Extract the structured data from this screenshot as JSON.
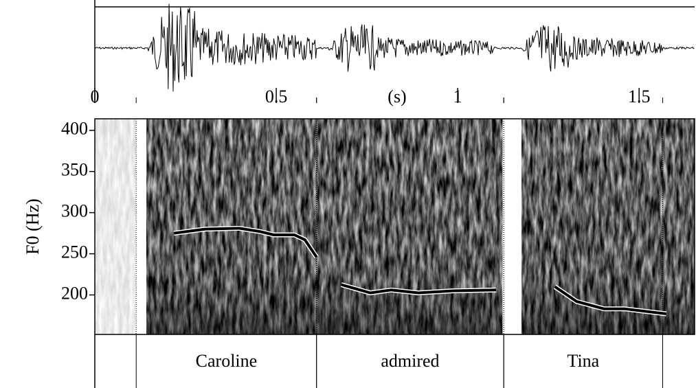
{
  "chart_data": {
    "type": "line",
    "xlabel": "(s)",
    "ylabel": "F0 (Hz)",
    "xlim": [
      0,
      1.653
    ],
    "xticks": [
      0,
      0.5,
      1,
      1.5
    ],
    "ylim": [
      152,
      414
    ],
    "yticks": [
      200,
      250,
      300,
      350,
      400
    ],
    "x": [
      0.218,
      0.304,
      0.398,
      0.455,
      0.493,
      0.55,
      0.579,
      0.611,
      0.645,
      0.679,
      0.759,
      0.816,
      0.892,
      0.987,
      1.106,
      1.187,
      1.268,
      1.328,
      1.404,
      1.461,
      1.575
    ],
    "series": [
      {
        "color": "#000000",
        "values": [
          275,
          280,
          281,
          277,
          273,
          273,
          267,
          246,
          null,
          212.5,
          202.5,
          206,
          202.5,
          205,
          206,
          null,
          210,
          192,
          183,
          183,
          177
        ]
      }
    ],
    "intervals": [
      {
        "xmin": 0.114,
        "xmax": 0.611,
        "label": "Caroline"
      },
      {
        "xmin": 0.611,
        "xmax": 1.127,
        "label": "admired"
      },
      {
        "xmin": 1.127,
        "xmax": 1.565,
        "label": "Tina"
      }
    ]
  }
}
